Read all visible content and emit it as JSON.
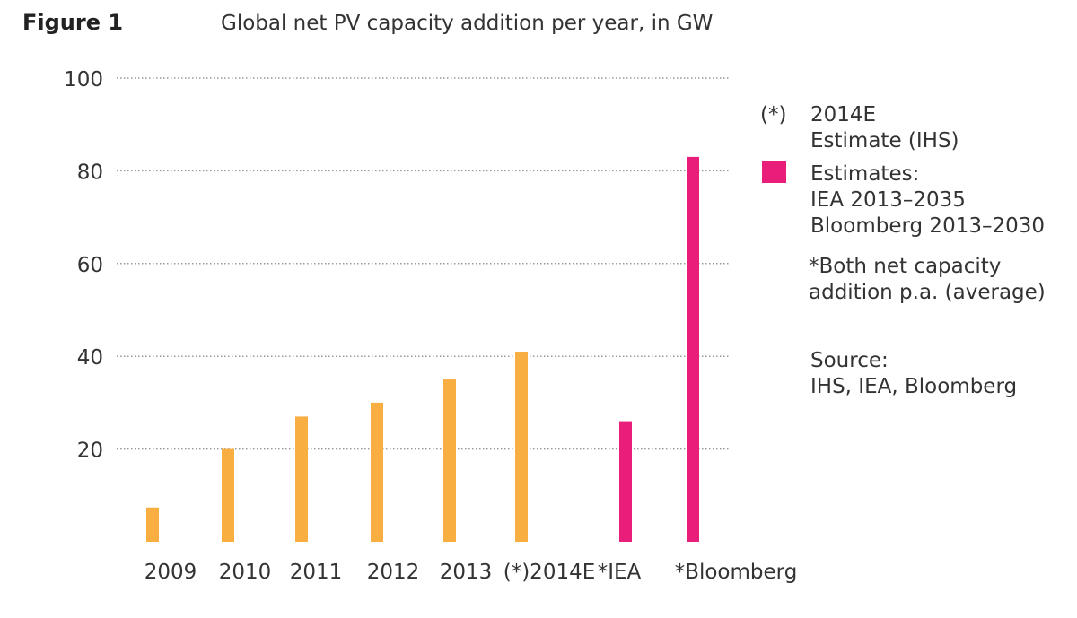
{
  "figure_label": "Figure 1",
  "chart_data": {
    "type": "bar",
    "title": "Global net PV capacity addition per year, in GW",
    "xlabel": "",
    "ylabel": "",
    "ylim": [
      0,
      100
    ],
    "yticks": [
      "20",
      "40",
      "60",
      "80",
      "100"
    ],
    "ytick_values": [
      20,
      40,
      60,
      80,
      100
    ],
    "grid": true,
    "categories": [
      "2009",
      "2010",
      "2011",
      "2012",
      "2013",
      "(*)2014E",
      "*IEA",
      "*Bloomberg"
    ],
    "values": [
      7.4,
      20,
      27,
      30,
      35,
      41,
      26,
      83
    ],
    "bar_colors": [
      "#f9ae42",
      "#f9ae42",
      "#f9ae42",
      "#f9ae42",
      "#f9ae42",
      "#f9ae42",
      "#e91e7a",
      "#e91e7a"
    ],
    "legend_position": "right"
  },
  "legend": {
    "estimate_marker": "(*)",
    "estimate_lines": [
      "2014E",
      "Estimate (IHS)"
    ],
    "estimates_color": "#e91e7a",
    "estimates_lines": [
      "Estimates:",
      "IEA 2013–2035",
      "Bloomberg 2013–2030"
    ],
    "note_lines": [
      "*Both net capacity",
      "addition p.a. (average)"
    ],
    "source_lines": [
      "Source:",
      "IHS, IEA, Bloomberg"
    ]
  }
}
